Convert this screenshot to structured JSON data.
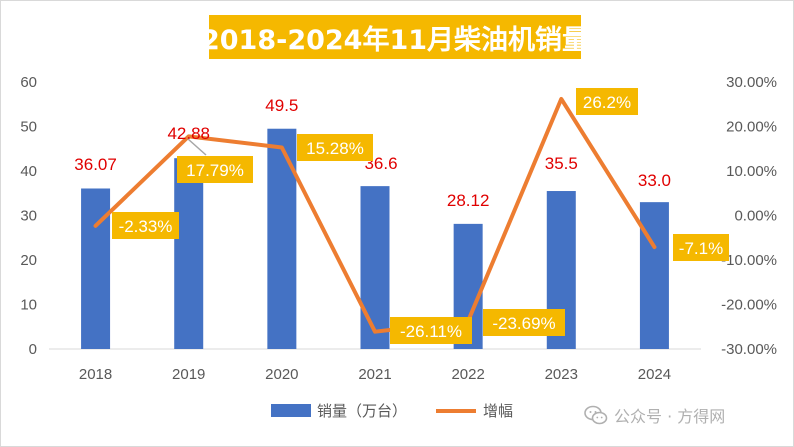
{
  "title": "2018-2024年11月柴油机销量",
  "watermark": "公众号 · 方得网",
  "colors": {
    "bar": "#4472c4",
    "line": "#ed7d31",
    "label_box": "#f5b800",
    "value_label": "#e00000"
  },
  "chart_data": {
    "type": "bar",
    "categories": [
      "2018",
      "2019",
      "2020",
      "2021",
      "2022",
      "2023",
      "2024"
    ],
    "series": [
      {
        "name": "销量（万台）",
        "type": "bar",
        "axis": "left",
        "values": [
          36.07,
          42.88,
          49.5,
          36.6,
          28.12,
          35.5,
          33.0
        ],
        "labels": [
          "36.07",
          "42.88",
          "49.5",
          "36.6",
          "28.12",
          "35.5",
          "33.0"
        ]
      },
      {
        "name": "增幅",
        "type": "line",
        "axis": "right",
        "values": [
          -2.33,
          17.79,
          15.28,
          -26.11,
          -23.69,
          26.2,
          -7.1
        ],
        "labels": [
          "-2.33%",
          "17.79%",
          "15.28%",
          "-26.11%",
          "-23.69%",
          "26.2%",
          "-7.1%"
        ]
      }
    ],
    "y_left": {
      "min": 0,
      "max": 60,
      "ticks": [
        "0",
        "10",
        "20",
        "30",
        "40",
        "50",
        "60"
      ]
    },
    "y_right": {
      "min": -30,
      "max": 30,
      "unit": "%",
      "ticks": [
        "-30.00%",
        "-20.00%",
        "-10.00%",
        "0.00%",
        "10.00%",
        "20.00%",
        "30.00%"
      ]
    },
    "grid": false,
    "legend_position": "bottom"
  }
}
